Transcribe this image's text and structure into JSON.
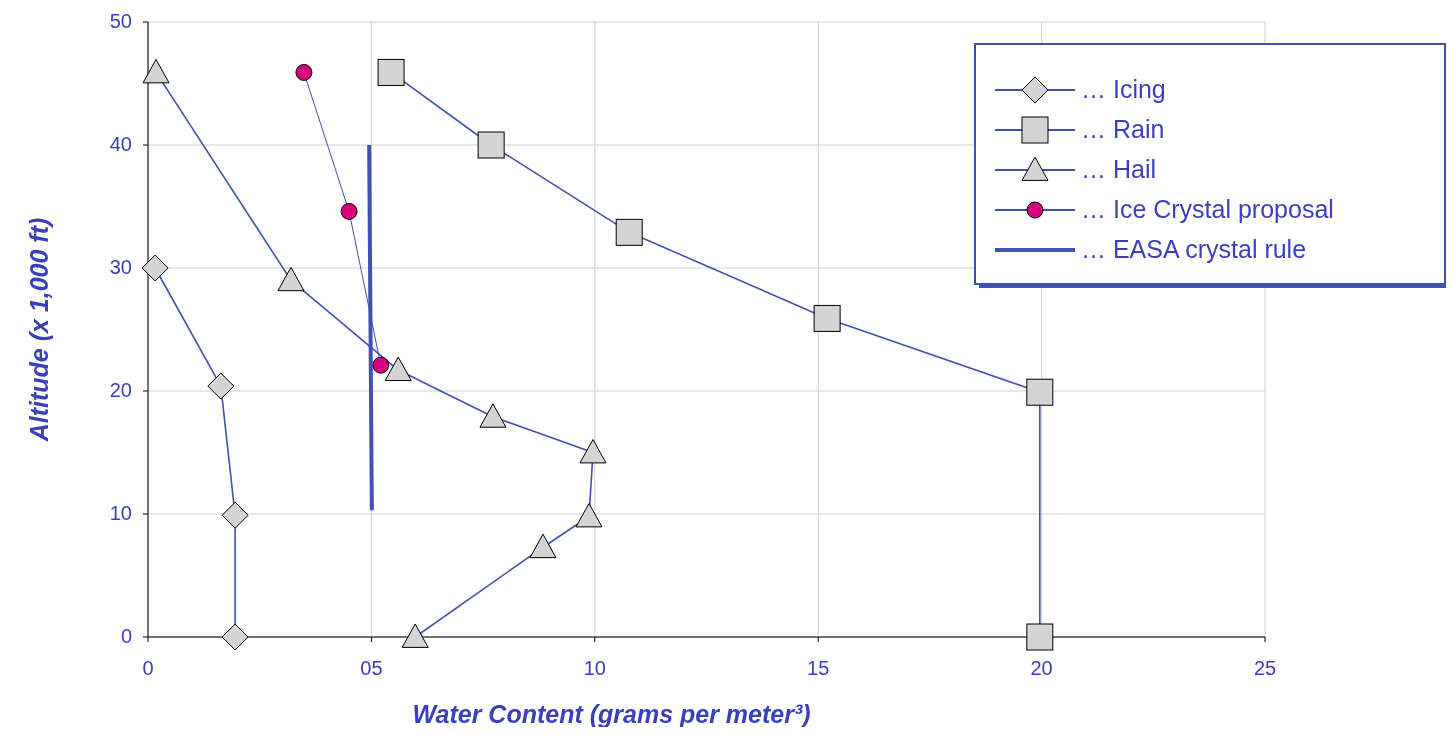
{
  "chart_data": {
    "type": "line",
    "xlabel": "Water Content (grams per meter³)",
    "ylabel": "Altitude (x 1,000 ft)",
    "xlim": [
      0,
      25
    ],
    "xticks": [
      0,
      {
        "value": 5,
        "label": "05"
      },
      10,
      15,
      20,
      25
    ],
    "ylim": [
      0,
      50
    ],
    "yticks": [
      0,
      10,
      20,
      30,
      40,
      50
    ],
    "grid": true,
    "legend": "top right",
    "line_style": "solid",
    "series": [
      {
        "name": "… Icing",
        "color": "#3f51b5",
        "marker": "diamond",
        "x": [
          0.16,
          1.63,
          1.95,
          1.95
        ],
        "values": [
          30,
          20.4,
          9.9,
          0
        ]
      },
      {
        "name": "… Rain",
        "color": "#3f51b5",
        "marker": "square",
        "x": [
          5.44,
          7.68,
          10.77,
          15.2,
          19.96,
          19.96
        ],
        "values": [
          45.9,
          40,
          32.9,
          25.9,
          19.9,
          0
        ]
      },
      {
        "name": "… Hail",
        "color": "#3f51b5",
        "marker": "triangle",
        "x": [
          0.18,
          3.2,
          5.6,
          7.72,
          9.96,
          9.87,
          8.84,
          5.98
        ],
        "values": [
          45.9,
          29,
          21.7,
          17.9,
          15,
          9.8,
          7.3,
          0
        ]
      },
      {
        "name": "… Ice Crystal proposal",
        "color": "#3f51b5",
        "colors": [
          "#d6007e",
          "#d6007e",
          "#d6007e"
        ],
        "marker": "circle",
        "x": [
          3.49,
          4.5,
          5.21
        ],
        "values": [
          45.9,
          34.6,
          22.1
        ]
      },
      {
        "name": "… EASA crystal rule",
        "color": "#3f51b5",
        "marker": "none",
        "x": [
          4.95,
          5.01
        ],
        "values": [
          40,
          10.3
        ]
      }
    ]
  }
}
